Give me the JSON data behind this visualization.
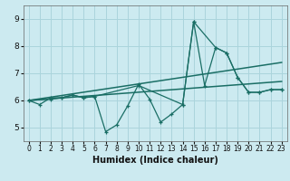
{
  "xlabel": "Humidex (Indice chaleur)",
  "ylabel": "",
  "bg_color": "#cceaf0",
  "grid_color": "#aad4dc",
  "line_color": "#1a6e65",
  "xlim": [
    -0.5,
    23.5
  ],
  "ylim": [
    4.5,
    9.5
  ],
  "xticks": [
    0,
    1,
    2,
    3,
    4,
    5,
    6,
    7,
    8,
    9,
    10,
    11,
    12,
    13,
    14,
    15,
    16,
    17,
    18,
    19,
    20,
    21,
    22,
    23
  ],
  "yticks": [
    5,
    6,
    7,
    8,
    9
  ],
  "series": [
    {
      "x": [
        0,
        1,
        2,
        3,
        4,
        5,
        6,
        7,
        8,
        9,
        10,
        11,
        12,
        13,
        14,
        15,
        16,
        17,
        18,
        19,
        20,
        21,
        22,
        23
      ],
      "y": [
        6.0,
        5.85,
        6.1,
        6.1,
        6.2,
        6.1,
        6.15,
        4.85,
        5.1,
        5.8,
        6.6,
        6.05,
        5.2,
        5.5,
        5.85,
        8.9,
        6.55,
        7.95,
        7.75,
        6.85,
        6.3,
        6.3,
        6.4,
        6.4
      ]
    },
    {
      "x": [
        0,
        2,
        3,
        4,
        5,
        6,
        10,
        14,
        15,
        17,
        18,
        19,
        20,
        21,
        22,
        23
      ],
      "y": [
        6.0,
        6.05,
        6.1,
        6.2,
        6.1,
        6.15,
        6.55,
        5.85,
        8.9,
        7.95,
        7.75,
        6.85,
        6.3,
        6.3,
        6.4,
        6.4
      ]
    },
    {
      "x": [
        0,
        23
      ],
      "y": [
        6.0,
        7.4
      ]
    },
    {
      "x": [
        0,
        23
      ],
      "y": [
        6.0,
        6.7
      ]
    }
  ]
}
